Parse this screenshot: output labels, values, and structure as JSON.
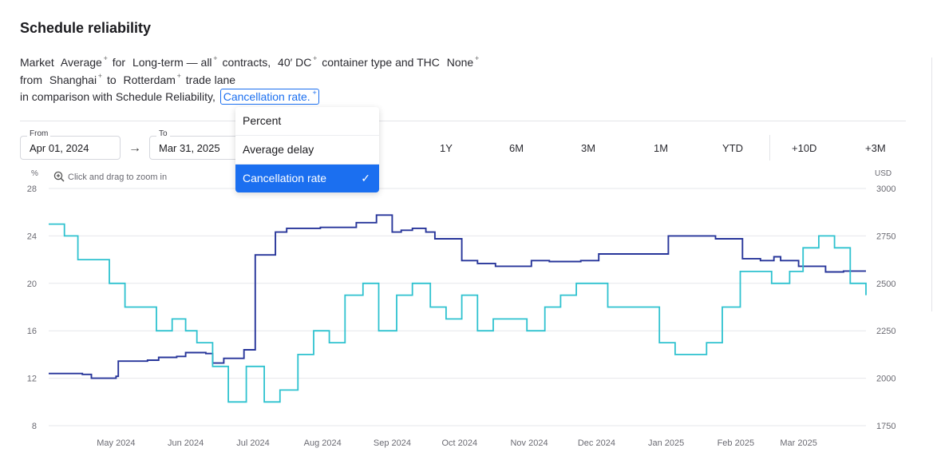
{
  "title": "Schedule reliability",
  "description": {
    "line1": {
      "t1": "Market",
      "s1": "Average",
      "t2": "for",
      "s2": "Long-term — all",
      "t3": "contracts,",
      "s3": "40′ DC",
      "t4": "container type and THC",
      "s4": "None"
    },
    "line2": {
      "t1": "from",
      "s1": "Shanghai",
      "t2": "to",
      "s2": "Rotterdam",
      "t3": "trade lane"
    },
    "line3": {
      "t1": "in comparison with Schedule Reliability,",
      "chip": "Cancellation rate."
    }
  },
  "date_range": {
    "from_label": "From",
    "from_value": "Apr 01, 2024",
    "to_label": "To",
    "to_value": "Mar 31, 2025"
  },
  "range_buttons": [
    "1Y",
    "6M",
    "3M",
    "1M",
    "YTD"
  ],
  "forecast_buttons": [
    "+10D",
    "+3M"
  ],
  "zoom_hint": "Click and drag to zoom in",
  "dropdown": {
    "options": [
      "Percent",
      "Average delay",
      "Cancellation rate"
    ],
    "selected": "Cancellation rate",
    "check": "✓"
  },
  "chart_data": {
    "type": "line",
    "left_axis": {
      "unit_label": "%",
      "range": [
        8,
        28
      ],
      "ticks": [
        8,
        12,
        16,
        20,
        24,
        28
      ]
    },
    "right_axis": {
      "unit_label": "USD",
      "range": [
        1750,
        3000
      ],
      "ticks": [
        1750,
        2000,
        2250,
        2500,
        2750,
        3000
      ]
    },
    "x_range": [
      "2024-04-01",
      "2025-03-31"
    ],
    "x_ticks": [
      {
        "date": "2024-05-01",
        "label": "May 2024"
      },
      {
        "date": "2024-06-01",
        "label": "Jun 2024"
      },
      {
        "date": "2024-07-01",
        "label": "Jul 2024"
      },
      {
        "date": "2024-08-01",
        "label": "Aug 2024"
      },
      {
        "date": "2024-09-01",
        "label": "Sep 2024"
      },
      {
        "date": "2024-10-01",
        "label": "Oct 2024"
      },
      {
        "date": "2024-11-01",
        "label": "Nov 2024"
      },
      {
        "date": "2024-12-01",
        "label": "Dec 2024"
      },
      {
        "date": "2025-01-01",
        "label": "Jan 2025"
      },
      {
        "date": "2025-02-01",
        "label": "Feb 2025"
      },
      {
        "date": "2025-03-01",
        "label": "Mar 2025"
      }
    ],
    "series": [
      {
        "axis": "right",
        "color": "#27359a",
        "points": [
          [
            "2024-04-01",
            2025
          ],
          [
            "2024-04-16",
            2020
          ],
          [
            "2024-04-20",
            2000
          ],
          [
            "2024-05-01",
            2010
          ],
          [
            "2024-05-02",
            2090
          ],
          [
            "2024-05-15",
            2095
          ],
          [
            "2024-05-20",
            2110
          ],
          [
            "2024-05-28",
            2115
          ],
          [
            "2024-06-01",
            2135
          ],
          [
            "2024-06-10",
            2130
          ],
          [
            "2024-06-13",
            2080
          ],
          [
            "2024-06-18",
            2105
          ],
          [
            "2024-06-27",
            2150
          ],
          [
            "2024-07-02",
            2650
          ],
          [
            "2024-07-11",
            2770
          ],
          [
            "2024-07-16",
            2790
          ],
          [
            "2024-07-31",
            2795
          ],
          [
            "2024-08-16",
            2820
          ],
          [
            "2024-08-25",
            2860
          ],
          [
            "2024-09-01",
            2770
          ],
          [
            "2024-09-05",
            2780
          ],
          [
            "2024-09-10",
            2790
          ],
          [
            "2024-09-16",
            2770
          ],
          [
            "2024-09-20",
            2735
          ],
          [
            "2024-10-02",
            2620
          ],
          [
            "2024-10-09",
            2605
          ],
          [
            "2024-10-17",
            2590
          ],
          [
            "2024-11-02",
            2620
          ],
          [
            "2024-11-10",
            2615
          ],
          [
            "2024-11-24",
            2620
          ],
          [
            "2024-12-02",
            2655
          ],
          [
            "2025-01-02",
            2750
          ],
          [
            "2025-01-23",
            2735
          ],
          [
            "2025-02-04",
            2630
          ],
          [
            "2025-02-12",
            2620
          ],
          [
            "2025-02-18",
            2640
          ],
          [
            "2025-02-21",
            2620
          ],
          [
            "2025-03-01",
            2590
          ],
          [
            "2025-03-13",
            2560
          ],
          [
            "2025-03-21",
            2565
          ],
          [
            "2025-03-31",
            2565
          ]
        ]
      },
      {
        "axis": "left",
        "color": "#2ec2cf",
        "points": [
          [
            "2024-04-01",
            25
          ],
          [
            "2024-04-08",
            24
          ],
          [
            "2024-04-14",
            22
          ],
          [
            "2024-04-28",
            20
          ],
          [
            "2024-05-05",
            18
          ],
          [
            "2024-05-19",
            16
          ],
          [
            "2024-05-26",
            17
          ],
          [
            "2024-06-01",
            16
          ],
          [
            "2024-06-06",
            15
          ],
          [
            "2024-06-13",
            13
          ],
          [
            "2024-06-20",
            10
          ],
          [
            "2024-06-28",
            13
          ],
          [
            "2024-07-06",
            10
          ],
          [
            "2024-07-13",
            11
          ],
          [
            "2024-07-21",
            14
          ],
          [
            "2024-07-28",
            16
          ],
          [
            "2024-08-04",
            15
          ],
          [
            "2024-08-11",
            19
          ],
          [
            "2024-08-19",
            20
          ],
          [
            "2024-08-26",
            16
          ],
          [
            "2024-09-03",
            19
          ],
          [
            "2024-09-10",
            20
          ],
          [
            "2024-09-18",
            18
          ],
          [
            "2024-09-25",
            17
          ],
          [
            "2024-10-02",
            19
          ],
          [
            "2024-10-09",
            16
          ],
          [
            "2024-10-16",
            17
          ],
          [
            "2024-10-31",
            16
          ],
          [
            "2024-11-08",
            18
          ],
          [
            "2024-11-15",
            19
          ],
          [
            "2024-11-22",
            20
          ],
          [
            "2024-12-06",
            18
          ],
          [
            "2024-12-29",
            15
          ],
          [
            "2025-01-05",
            14
          ],
          [
            "2025-01-19",
            15
          ],
          [
            "2025-01-26",
            18
          ],
          [
            "2025-02-03",
            21
          ],
          [
            "2025-02-17",
            20
          ],
          [
            "2025-02-25",
            21
          ],
          [
            "2025-03-03",
            23
          ],
          [
            "2025-03-10",
            24
          ],
          [
            "2025-03-17",
            23
          ],
          [
            "2025-03-24",
            20
          ],
          [
            "2025-03-31",
            19
          ]
        ]
      }
    ]
  }
}
